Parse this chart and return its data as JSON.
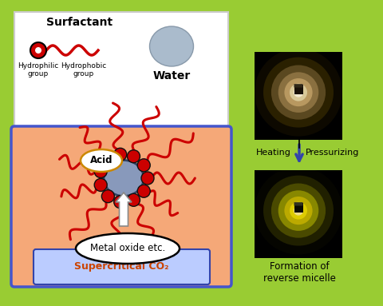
{
  "bg_color": "#99cc33",
  "sc_label_text": "Supercritical CO₂",
  "surfactant_text": "Surfactant",
  "hydrophilic_text": "Hydrophilic\ngroup",
  "hydrophobic_text": "Hydrophobic\ngroup",
  "water_text": "Water",
  "acid_text": "Acid",
  "metal_text": "Metal oxide etc.",
  "heating_text": "Heating",
  "pressurizing_text": "Pressurizing",
  "formation_text": "Formation of\nreverse micelle",
  "red_color": "#cc0000",
  "blue_gray_core": "#8899bb",
  "sc_box_color": "#f5a878",
  "arrow_color": "#3344aa"
}
